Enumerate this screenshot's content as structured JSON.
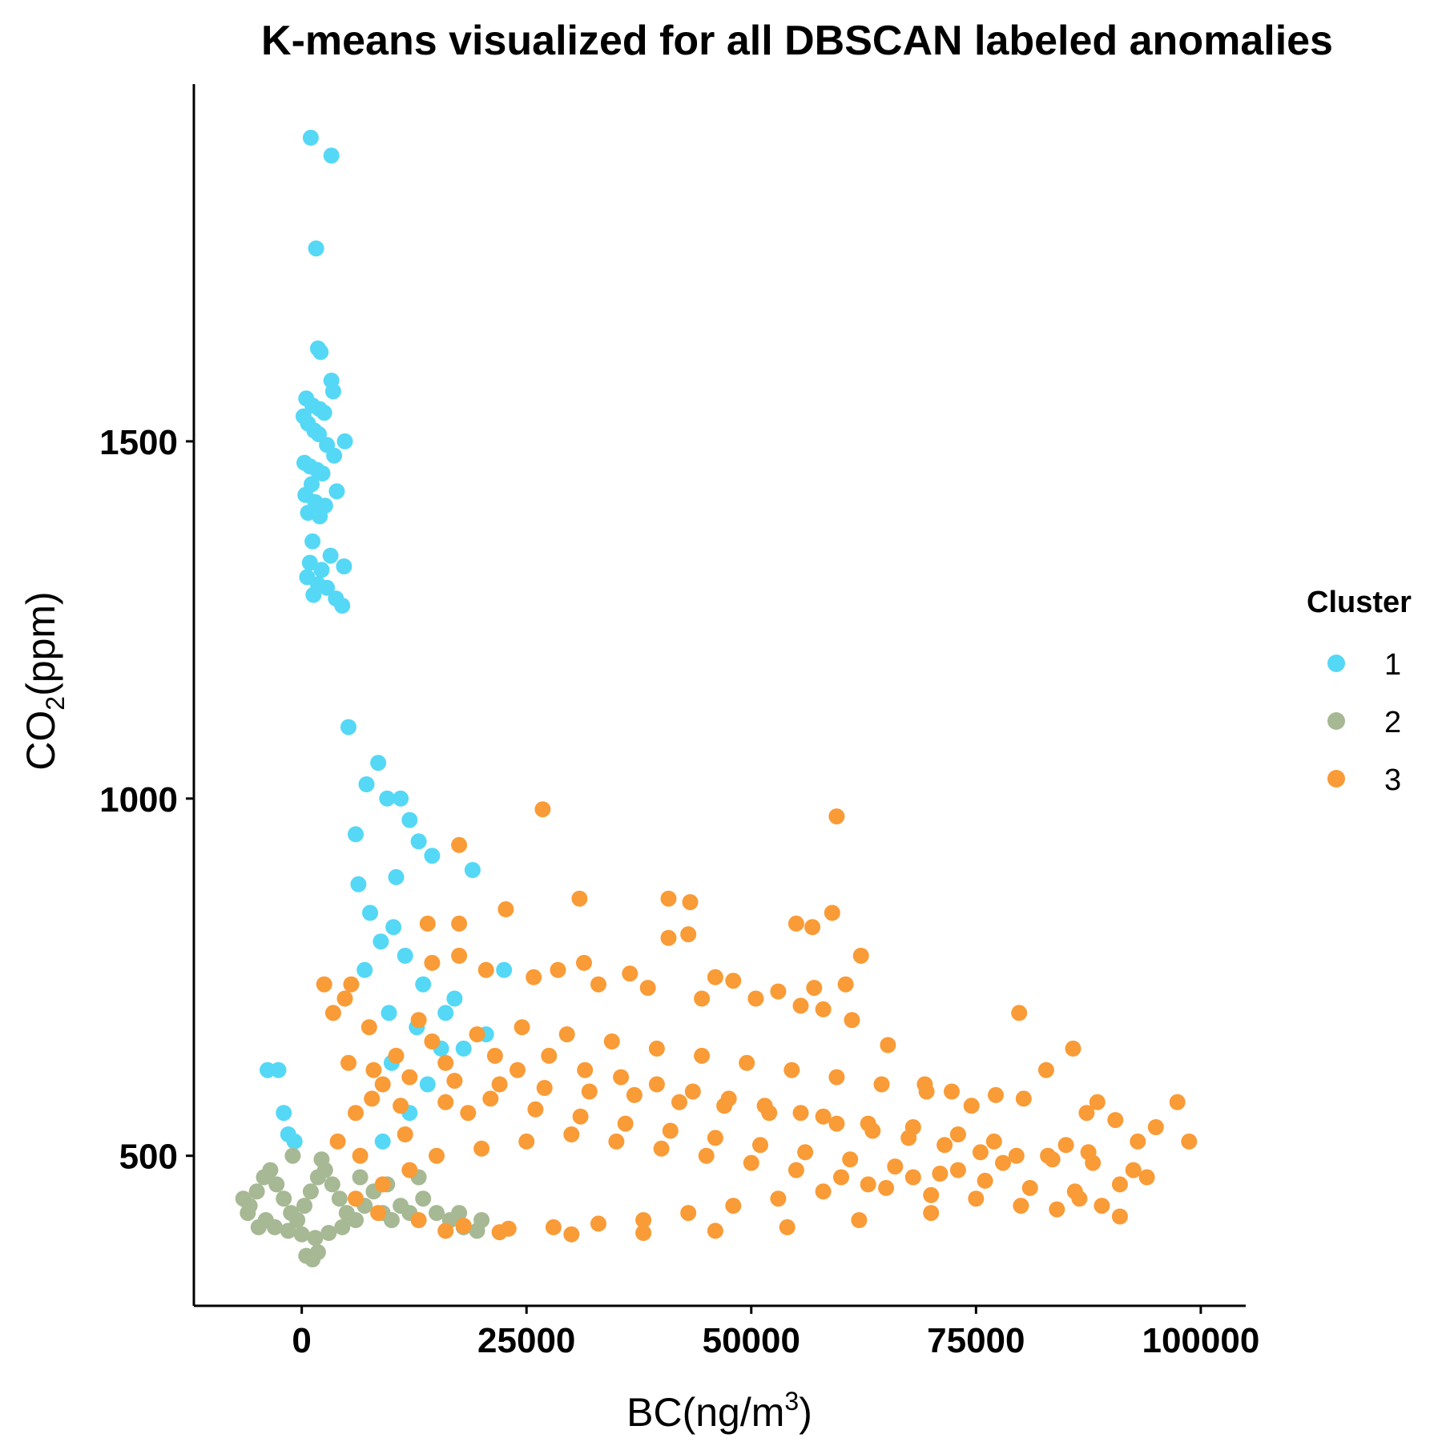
{
  "chart_data": {
    "type": "scatter",
    "title": "K-means visualized for all DBSCAN labeled anomalies",
    "xlabel": {
      "text": "BC(ng/m",
      "sup": "3",
      "tail": ")"
    },
    "ylabel": {
      "text": "CO",
      "sub": "2",
      "tail": "(ppm)"
    },
    "xlim": [
      -12000,
      105000
    ],
    "ylim": [
      290,
      2000
    ],
    "x_ticks": [
      0,
      25000,
      50000,
      75000,
      100000
    ],
    "x_tick_labels": [
      "0",
      "25000",
      "50000",
      "75000",
      "100000"
    ],
    "y_ticks": [
      500,
      1000,
      1500
    ],
    "y_tick_labels": [
      "500",
      "1000",
      "1500"
    ],
    "grid": false,
    "legend": {
      "title": "Cluster",
      "placement": "right",
      "entries": [
        {
          "label": "1",
          "color": "#54D8F5"
        },
        {
          "label": "2",
          "color": "#A6B894"
        },
        {
          "label": "3",
          "color": "#F99B36"
        }
      ]
    },
    "series": [
      {
        "name": "1",
        "color": "#54D8F5",
        "points": [
          [
            1000,
            1925
          ],
          [
            3300,
            1900
          ],
          [
            1600,
            1770
          ],
          [
            1800,
            1630
          ],
          [
            2100,
            1625
          ],
          [
            3300,
            1585
          ],
          [
            3500,
            1570
          ],
          [
            500,
            1560
          ],
          [
            1200,
            1550
          ],
          [
            2000,
            1545
          ],
          [
            2500,
            1540
          ],
          [
            200,
            1535
          ],
          [
            700,
            1525
          ],
          [
            1400,
            1515
          ],
          [
            1900,
            1510
          ],
          [
            4800,
            1500
          ],
          [
            2800,
            1495
          ],
          [
            3600,
            1480
          ],
          [
            300,
            1470
          ],
          [
            900,
            1465
          ],
          [
            1700,
            1460
          ],
          [
            2300,
            1455
          ],
          [
            1100,
            1440
          ],
          [
            3900,
            1430
          ],
          [
            400,
            1425
          ],
          [
            1500,
            1415
          ],
          [
            2600,
            1410
          ],
          [
            700,
            1400
          ],
          [
            2000,
            1395
          ],
          [
            1200,
            1360
          ],
          [
            3200,
            1340
          ],
          [
            900,
            1330
          ],
          [
            4700,
            1325
          ],
          [
            2200,
            1320
          ],
          [
            600,
            1310
          ],
          [
            1800,
            1300
          ],
          [
            2800,
            1295
          ],
          [
            1300,
            1285
          ],
          [
            3800,
            1280
          ],
          [
            4500,
            1270
          ],
          [
            10000,
            630
          ],
          [
            11000,
            1000
          ],
          [
            12000,
            970
          ],
          [
            13000,
            940
          ],
          [
            14500,
            920
          ],
          [
            19000,
            900
          ],
          [
            22500,
            760
          ],
          [
            20500,
            670
          ],
          [
            18000,
            650
          ],
          [
            16000,
            700
          ],
          [
            8500,
            1050
          ],
          [
            9500,
            1000
          ],
          [
            7200,
            1020
          ],
          [
            10500,
            890
          ],
          [
            8800,
            800
          ],
          [
            11500,
            780
          ],
          [
            13500,
            740
          ],
          [
            -3800,
            620
          ],
          [
            -2600,
            620
          ],
          [
            -2000,
            560
          ],
          [
            -1500,
            530
          ],
          [
            -800,
            520
          ],
          [
            9000,
            520
          ],
          [
            12000,
            560
          ],
          [
            14000,
            600
          ],
          [
            15500,
            650
          ],
          [
            7000,
            760
          ],
          [
            9700,
            700
          ],
          [
            12800,
            680
          ],
          [
            17000,
            720
          ],
          [
            6000,
            950
          ],
          [
            5200,
            1100
          ],
          [
            6300,
            880
          ],
          [
            7600,
            840
          ],
          [
            10200,
            820
          ]
        ]
      },
      {
        "name": "2",
        "color": "#A6B894",
        "points": [
          [
            -6500,
            440
          ],
          [
            -5800,
            430
          ],
          [
            -5000,
            450
          ],
          [
            -4200,
            470
          ],
          [
            -3500,
            480
          ],
          [
            -2800,
            460
          ],
          [
            -2000,
            440
          ],
          [
            -1200,
            420
          ],
          [
            -500,
            410
          ],
          [
            300,
            430
          ],
          [
            1000,
            450
          ],
          [
            1800,
            470
          ],
          [
            2600,
            480
          ],
          [
            3400,
            460
          ],
          [
            4200,
            440
          ],
          [
            5000,
            420
          ],
          [
            6000,
            410
          ],
          [
            7000,
            430
          ],
          [
            8000,
            450
          ],
          [
            9000,
            420
          ],
          [
            10000,
            410
          ],
          [
            11000,
            430
          ],
          [
            12000,
            420
          ],
          [
            13500,
            440
          ],
          [
            15000,
            420
          ],
          [
            16500,
            410
          ],
          [
            18000,
            400
          ],
          [
            19500,
            395
          ],
          [
            -4000,
            410
          ],
          [
            -3000,
            400
          ],
          [
            -1500,
            395
          ],
          [
            0,
            390
          ],
          [
            1500,
            385
          ],
          [
            3000,
            392
          ],
          [
            4500,
            400
          ],
          [
            500,
            360
          ],
          [
            1200,
            355
          ],
          [
            1800,
            365
          ],
          [
            -6000,
            420
          ],
          [
            -4800,
            400
          ],
          [
            2200,
            495
          ],
          [
            -1000,
            500
          ],
          [
            6500,
            470
          ],
          [
            9500,
            460
          ],
          [
            13000,
            470
          ],
          [
            17500,
            420
          ],
          [
            20000,
            410
          ]
        ]
      },
      {
        "name": "3",
        "color": "#F99B36",
        "points": [
          [
            26800,
            985
          ],
          [
            59500,
            975
          ],
          [
            17500,
            935
          ],
          [
            30900,
            860
          ],
          [
            40800,
            860
          ],
          [
            43200,
            855
          ],
          [
            22700,
            845
          ],
          [
            59000,
            840
          ],
          [
            14000,
            825
          ],
          [
            17500,
            825
          ],
          [
            55000,
            825
          ],
          [
            56800,
            820
          ],
          [
            40800,
            805
          ],
          [
            43000,
            810
          ],
          [
            62200,
            780
          ],
          [
            17500,
            780
          ],
          [
            31400,
            770
          ],
          [
            14500,
            770
          ],
          [
            20500,
            760
          ],
          [
            28500,
            760
          ],
          [
            36500,
            755
          ],
          [
            46000,
            750
          ],
          [
            48000,
            745
          ],
          [
            53000,
            730
          ],
          [
            57000,
            735
          ],
          [
            60500,
            740
          ],
          [
            25800,
            750
          ],
          [
            33000,
            740
          ],
          [
            38500,
            735
          ],
          [
            44500,
            720
          ],
          [
            50500,
            720
          ],
          [
            55500,
            710
          ],
          [
            58000,
            705
          ],
          [
            79800,
            700
          ],
          [
            61200,
            690
          ],
          [
            65200,
            655
          ],
          [
            85800,
            650
          ],
          [
            82800,
            620
          ],
          [
            69300,
            600
          ],
          [
            72300,
            590
          ],
          [
            77200,
            585
          ],
          [
            80300,
            580
          ],
          [
            88500,
            575
          ],
          [
            97400,
            575
          ],
          [
            87300,
            560
          ],
          [
            90500,
            550
          ],
          [
            95000,
            540
          ],
          [
            98700,
            520
          ],
          [
            93000,
            520
          ],
          [
            85000,
            515
          ],
          [
            77000,
            520
          ],
          [
            73000,
            530
          ],
          [
            68000,
            540
          ],
          [
            63000,
            545
          ],
          [
            58000,
            555
          ],
          [
            52000,
            560
          ],
          [
            47000,
            570
          ],
          [
            42000,
            575
          ],
          [
            37000,
            585
          ],
          [
            32000,
            590
          ],
          [
            27000,
            595
          ],
          [
            22000,
            600
          ],
          [
            17000,
            605
          ],
          [
            12000,
            610
          ],
          [
            8000,
            620
          ],
          [
            5200,
            630
          ],
          [
            10500,
            640
          ],
          [
            14500,
            660
          ],
          [
            19500,
            670
          ],
          [
            24500,
            680
          ],
          [
            29500,
            670
          ],
          [
            34500,
            660
          ],
          [
            39500,
            650
          ],
          [
            44500,
            640
          ],
          [
            49500,
            630
          ],
          [
            54500,
            620
          ],
          [
            59500,
            610
          ],
          [
            64500,
            600
          ],
          [
            69500,
            590
          ],
          [
            74500,
            570
          ],
          [
            6000,
            560
          ],
          [
            11000,
            570
          ],
          [
            16000,
            575
          ],
          [
            21000,
            580
          ],
          [
            26000,
            565
          ],
          [
            31000,
            555
          ],
          [
            36000,
            545
          ],
          [
            41000,
            535
          ],
          [
            46000,
            525
          ],
          [
            51000,
            515
          ],
          [
            56000,
            505
          ],
          [
            61000,
            495
          ],
          [
            66000,
            485
          ],
          [
            71000,
            475
          ],
          [
            76000,
            465
          ],
          [
            81000,
            455
          ],
          [
            86000,
            450
          ],
          [
            91000,
            460
          ],
          [
            94000,
            470
          ],
          [
            92500,
            480
          ],
          [
            88000,
            490
          ],
          [
            83000,
            500
          ],
          [
            78000,
            490
          ],
          [
            73000,
            480
          ],
          [
            68000,
            470
          ],
          [
            63000,
            460
          ],
          [
            58000,
            450
          ],
          [
            53000,
            440
          ],
          [
            48000,
            430
          ],
          [
            43000,
            420
          ],
          [
            38000,
            410
          ],
          [
            33000,
            405
          ],
          [
            28000,
            400
          ],
          [
            23000,
            398
          ],
          [
            18000,
            402
          ],
          [
            13000,
            410
          ],
          [
            8500,
            420
          ],
          [
            6000,
            440
          ],
          [
            9000,
            460
          ],
          [
            12000,
            480
          ],
          [
            15000,
            500
          ],
          [
            20000,
            510
          ],
          [
            25000,
            520
          ],
          [
            30000,
            530
          ],
          [
            35000,
            520
          ],
          [
            40000,
            510
          ],
          [
            45000,
            500
          ],
          [
            50000,
            490
          ],
          [
            55000,
            480
          ],
          [
            60000,
            470
          ],
          [
            65000,
            455
          ],
          [
            70000,
            445
          ],
          [
            75000,
            440
          ],
          [
            80000,
            430
          ],
          [
            84000,
            425
          ],
          [
            89000,
            430
          ],
          [
            91000,
            415
          ],
          [
            86500,
            440
          ],
          [
            70000,
            420
          ],
          [
            62000,
            410
          ],
          [
            54000,
            400
          ],
          [
            46000,
            395
          ],
          [
            38000,
            392
          ],
          [
            30000,
            390
          ],
          [
            22000,
            393
          ],
          [
            16000,
            395
          ],
          [
            4800,
            720
          ],
          [
            5500,
            740
          ],
          [
            7500,
            680
          ],
          [
            9000,
            600
          ],
          [
            11500,
            530
          ],
          [
            13000,
            690
          ],
          [
            16000,
            630
          ],
          [
            18500,
            560
          ],
          [
            21500,
            640
          ],
          [
            24000,
            620
          ],
          [
            27500,
            640
          ],
          [
            31500,
            620
          ],
          [
            35500,
            610
          ],
          [
            39500,
            600
          ],
          [
            43500,
            590
          ],
          [
            47500,
            580
          ],
          [
            51500,
            570
          ],
          [
            55500,
            560
          ],
          [
            59500,
            545
          ],
          [
            63500,
            535
          ],
          [
            67500,
            525
          ],
          [
            71500,
            515
          ],
          [
            75500,
            505
          ],
          [
            79500,
            500
          ],
          [
            83500,
            495
          ],
          [
            87500,
            505
          ],
          [
            2500,
            740
          ],
          [
            3500,
            700
          ],
          [
            4000,
            520
          ],
          [
            6500,
            500
          ],
          [
            7800,
            580
          ]
        ]
      }
    ]
  }
}
